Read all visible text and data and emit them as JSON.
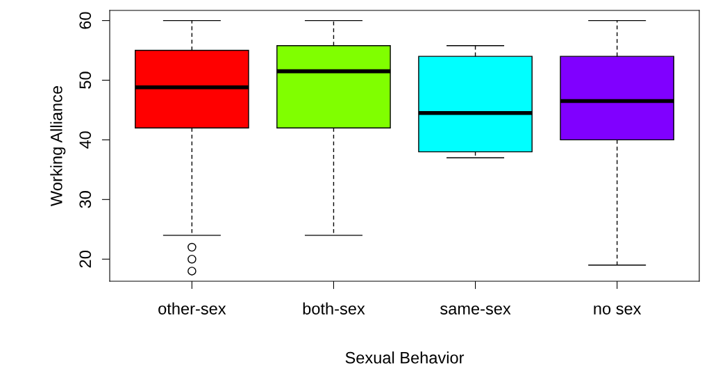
{
  "chart_data": {
    "type": "box",
    "xlabel": "Sexual Behavior",
    "ylabel": "Working Alliance",
    "categories": [
      "other-sex",
      "both-sex",
      "same-sex",
      "no sex"
    ],
    "colors": [
      "#ff0000",
      "#80ff00",
      "#00ffff",
      "#8000ff"
    ],
    "boxes": [
      {
        "low": 24,
        "q1": 42,
        "median": 48.8,
        "q3": 55,
        "high": 60,
        "outliers": [
          22,
          20,
          18
        ]
      },
      {
        "low": 24,
        "q1": 42,
        "median": 51.5,
        "q3": 55.8,
        "high": 60
      },
      {
        "low": 37,
        "q1": 38,
        "median": 44.5,
        "q3": 54,
        "high": 55.8
      },
      {
        "low": 19,
        "q1": 40,
        "median": 46.5,
        "q3": 54,
        "high": 60
      }
    ],
    "ylim": [
      16.3,
      61.7
    ],
    "yticks": [
      20,
      30,
      40,
      50,
      60
    ],
    "grid": false,
    "legend": false
  }
}
